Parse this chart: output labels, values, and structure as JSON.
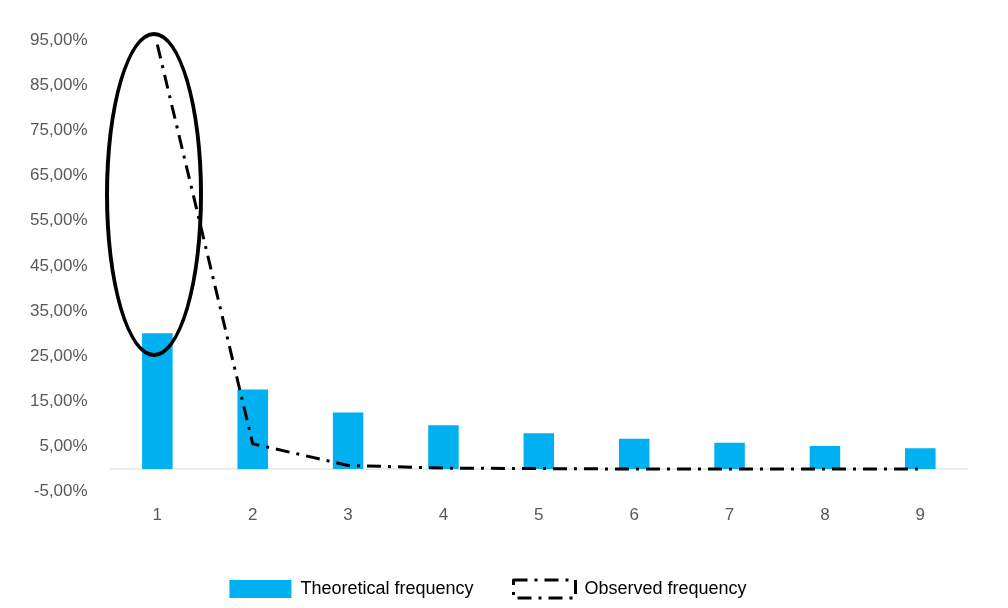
{
  "chart_data": {
    "type": "bar",
    "categories": [
      "1",
      "2",
      "3",
      "4",
      "5",
      "6",
      "7",
      "8",
      "9"
    ],
    "series": [
      {
        "name": "Theoretical frequency",
        "color": "#00b0f0",
        "values": [
          30.1,
          17.6,
          12.5,
          9.7,
          7.9,
          6.7,
          5.8,
          5.1,
          4.6
        ]
      },
      {
        "name": "Observed frequency",
        "type": "line",
        "color": "#000000",
        "line_style": "dashed",
        "marker": "none",
        "values": [
          94,
          5.6,
          0.8,
          0.2,
          0.1,
          0,
          0,
          0,
          0
        ]
      }
    ],
    "ylim": [
      -5,
      95
    ],
    "yticks": [
      {
        "value": -5,
        "label": "-5,00%"
      },
      {
        "value": 5,
        "label": "5,00%"
      },
      {
        "value": 15,
        "label": "15,00%"
      },
      {
        "value": 25,
        "label": "25,00%"
      },
      {
        "value": 35,
        "label": "35,00%"
      },
      {
        "value": 45,
        "label": "45,00%"
      },
      {
        "value": 55,
        "label": "55,00%"
      },
      {
        "value": 65,
        "label": "65,00%"
      },
      {
        "value": 75,
        "label": "75,00%"
      },
      {
        "value": 85,
        "label": "85,00%"
      },
      {
        "value": 95,
        "label": "95,00%"
      }
    ],
    "grid": false,
    "legend": "bottom"
  }
}
